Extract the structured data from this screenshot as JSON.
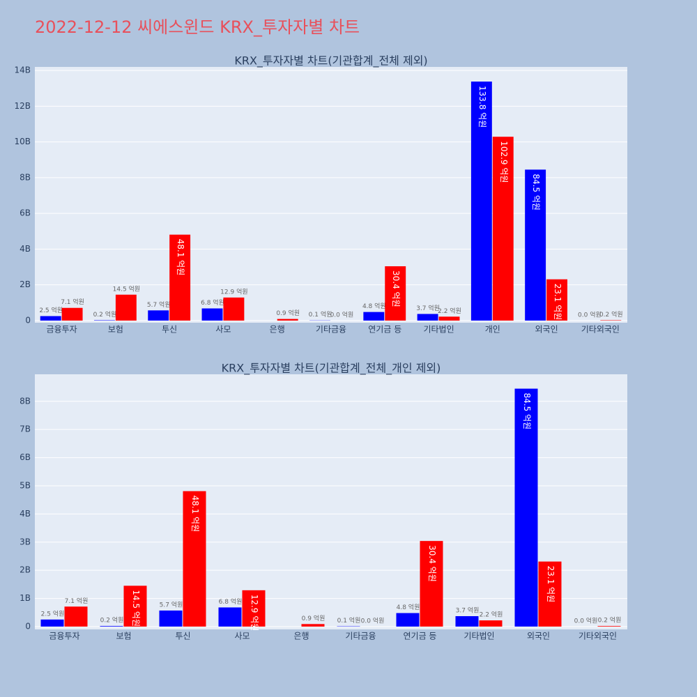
{
  "title": "2022-12-12 씨에스윈드 KRX_투자자별 차트",
  "chart_data": [
    {
      "type": "bar",
      "title": "KRX_투자자별 차트(기관합계_전체 제외)",
      "categories": [
        "금융투자",
        "보험",
        "투신",
        "사모",
        "은행",
        "기타금융",
        "연기금 등",
        "기타법인",
        "개인",
        "외국인",
        "기타외국인"
      ],
      "series": [
        {
          "color": "#0000ff",
          "values": [
            250000000,
            20000000,
            570000000,
            680000000,
            null,
            10000000,
            480000000,
            370000000,
            13380000000,
            8450000000,
            0
          ],
          "value_labels": [
            "2.5 억원",
            "0.2 억원",
            "5.7 억원",
            "6.8 억원",
            null,
            "0.1 억원",
            "4.8 억원",
            "3.7 억원",
            "133.8 억원",
            "84.5 억원",
            "0.0 억원"
          ]
        },
        {
          "color": "#ff0000",
          "values": [
            710000000,
            1450000000,
            4810000000,
            1290000000,
            90000000,
            0,
            3040000000,
            220000000,
            10290000000,
            2310000000,
            20000000
          ],
          "value_labels": [
            "7.1 억원",
            "14.5 억원",
            "48.1 억원",
            "12.9 억원",
            "0.9 억원",
            "0.0 억원",
            "30.4 억원",
            "2.2 억원",
            "102.9 억원",
            "23.1 억원",
            "0.2 억원"
          ]
        }
      ],
      "ylim": [
        -120000000,
        14200000000
      ],
      "yticks": [
        0,
        {
          "value": 2000000000,
          "label": "2B"
        },
        {
          "value": 4000000000,
          "label": "4B"
        },
        {
          "value": 6000000000,
          "label": "6B"
        },
        {
          "value": 8000000000,
          "label": "8B"
        },
        {
          "value": 10000000000,
          "label": "10B"
        },
        {
          "value": 12000000000,
          "label": "12B"
        },
        {
          "value": 14000000000,
          "label": "14B"
        }
      ],
      "grid": true
    },
    {
      "type": "bar",
      "title": "KRX_투자자별 차트(기관합계_전체_개인 제외)",
      "categories": [
        "금융투자",
        "보험",
        "투신",
        "사모",
        "은행",
        "기타금융",
        "연기금 등",
        "기타법인",
        "외국인",
        "기타외국인"
      ],
      "series": [
        {
          "color": "#0000ff",
          "values": [
            250000000,
            20000000,
            570000000,
            680000000,
            null,
            10000000,
            480000000,
            370000000,
            8450000000,
            0
          ],
          "value_labels": [
            "2.5 억원",
            "0.2 억원",
            "5.7 억원",
            "6.8 억원",
            null,
            "0.1 억원",
            "4.8 억원",
            "3.7 억원",
            "84.5 억원",
            "0.0 억원"
          ]
        },
        {
          "color": "#ff0000",
          "values": [
            710000000,
            1450000000,
            4810000000,
            1290000000,
            90000000,
            0,
            3040000000,
            220000000,
            2310000000,
            20000000
          ],
          "value_labels": [
            "7.1 억원",
            "14.5 억원",
            "48.1 억원",
            "12.9 억원",
            "0.9 억원",
            "0.0 억원",
            "30.4 억원",
            "2.2 억원",
            "23.1 억원",
            "0.2 억원"
          ]
        }
      ],
      "ylim": [
        -100000000,
        8960000000
      ],
      "yticks": [
        0,
        {
          "value": 1000000000,
          "label": "1B"
        },
        {
          "value": 2000000000,
          "label": "2B"
        },
        {
          "value": 3000000000,
          "label": "3B"
        },
        {
          "value": 4000000000,
          "label": "4B"
        },
        {
          "value": 5000000000,
          "label": "5B"
        },
        {
          "value": 6000000000,
          "label": "6B"
        },
        {
          "value": 7000000000,
          "label": "7B"
        },
        {
          "value": 8000000000,
          "label": "8B"
        }
      ],
      "grid": true
    }
  ]
}
